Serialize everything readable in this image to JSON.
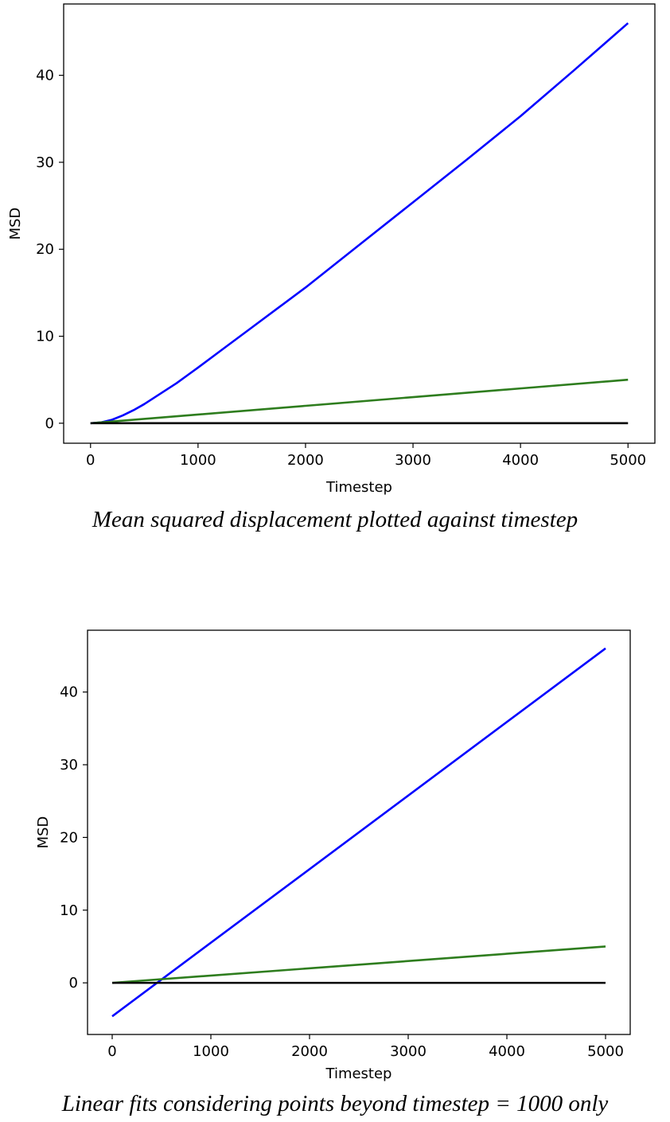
{
  "captions": [
    "Mean squared displacement plotted against timestep",
    "Linear fits considering points beyond timestep = 1000 only"
  ],
  "chart_data": [
    {
      "type": "line",
      "xlabel": "Timestep",
      "ylabel": "MSD",
      "xlim": [
        -250,
        5250
      ],
      "ylim": [
        -2.3,
        48.2
      ],
      "xticks": [
        0,
        1000,
        2000,
        3000,
        4000,
        5000
      ],
      "yticks": [
        0,
        10,
        20,
        30,
        40
      ],
      "grid": false,
      "series": [
        {
          "color": "#0000ff",
          "x": [
            0,
            100,
            200,
            300,
            400,
            500,
            600,
            700,
            800,
            900,
            1000,
            1250,
            1500,
            1750,
            2000,
            2500,
            3000,
            3500,
            4000,
            4500,
            5000
          ],
          "y": [
            0,
            0.1,
            0.4,
            0.9,
            1.5,
            2.2,
            3.0,
            3.8,
            4.6,
            5.5,
            6.4,
            8.7,
            11.0,
            13.3,
            15.6,
            20.5,
            25.4,
            30.3,
            35.3,
            40.6,
            46.0
          ]
        },
        {
          "color": "#2e7d1e",
          "x": [
            0,
            1000,
            2000,
            3000,
            4000,
            5000
          ],
          "y": [
            0,
            1.0,
            2.0,
            3.0,
            4.0,
            5.0
          ]
        },
        {
          "color": "#000000",
          "x": [
            0,
            5000
          ],
          "y": [
            0,
            0
          ]
        }
      ]
    },
    {
      "type": "line",
      "xlabel": "Timestep",
      "ylabel": "MSD",
      "xlim": [
        -250,
        5250
      ],
      "ylim": [
        -7.1,
        48.5
      ],
      "xticks": [
        0,
        1000,
        2000,
        3000,
        4000,
        5000
      ],
      "yticks": [
        0,
        10,
        20,
        30,
        40
      ],
      "grid": false,
      "series": [
        {
          "color": "#0000ff",
          "x": [
            0,
            5000
          ],
          "y": [
            -4.6,
            46.0
          ]
        },
        {
          "color": "#2e7d1e",
          "x": [
            0,
            5000
          ],
          "y": [
            0,
            5.0
          ]
        },
        {
          "color": "#000000",
          "x": [
            0,
            5000
          ],
          "y": [
            0,
            0
          ]
        }
      ]
    }
  ]
}
